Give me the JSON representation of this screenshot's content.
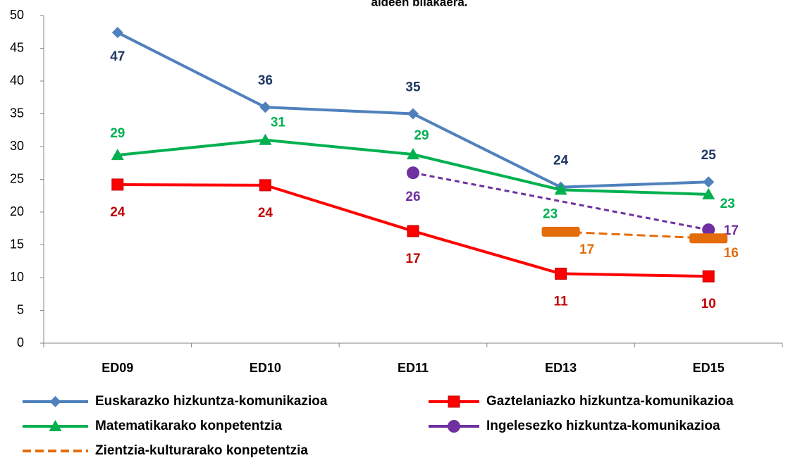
{
  "chart_data": {
    "type": "line",
    "title": "aldeen bilakaera.",
    "categories": [
      "ED09",
      "ED10",
      "ED11",
      "ED13",
      "ED15"
    ],
    "ylim": [
      0,
      50
    ],
    "yticks": [
      0,
      5,
      10,
      15,
      20,
      25,
      30,
      35,
      40,
      45,
      50
    ],
    "grid": false,
    "connect_gaps": true,
    "series": [
      {
        "name": "Euskarazko hizkuntza-komunikazioa",
        "color": "#4f81bd",
        "label_color": "#1f3864",
        "marker": "diamond",
        "dashed": false,
        "values": [
          47.4,
          36.0,
          35.0,
          23.8,
          24.6
        ],
        "value_labels": [
          "47",
          "36",
          "35",
          "24",
          "25"
        ]
      },
      {
        "name": "Gaztelaniazko hizkuntza-komunikazioa",
        "color": "#ff0000",
        "label_color": "#c00000",
        "marker": "square",
        "dashed": false,
        "values": [
          24.2,
          24.1,
          17.1,
          10.6,
          10.2
        ],
        "value_labels": [
          "24",
          "24",
          "17",
          "11",
          "10"
        ]
      },
      {
        "name": "Matematikarako konpetentzia",
        "color": "#00b050",
        "label_color": "#00b050",
        "marker": "triangle",
        "dashed": false,
        "values": [
          28.7,
          31.0,
          28.8,
          23.4,
          22.7
        ],
        "value_labels": [
          "29",
          "31",
          "29",
          "23",
          "23"
        ]
      },
      {
        "name": "Ingelesezko hizkuntza-komunikazioa",
        "color": "#7030a0",
        "label_color": "#7030a0",
        "marker": "circle",
        "dashed": true,
        "values": [
          null,
          null,
          26.0,
          null,
          17.3
        ],
        "value_labels": [
          null,
          null,
          "26",
          null,
          "17"
        ]
      },
      {
        "name": "Zientzia-kulturarako konpetentzia",
        "color": "#e46c0a",
        "label_color": "#e46c0a",
        "marker": "dash",
        "dashed": true,
        "values": [
          null,
          null,
          null,
          17.0,
          16.0
        ],
        "value_labels": [
          null,
          null,
          null,
          "17",
          "16"
        ]
      }
    ]
  }
}
